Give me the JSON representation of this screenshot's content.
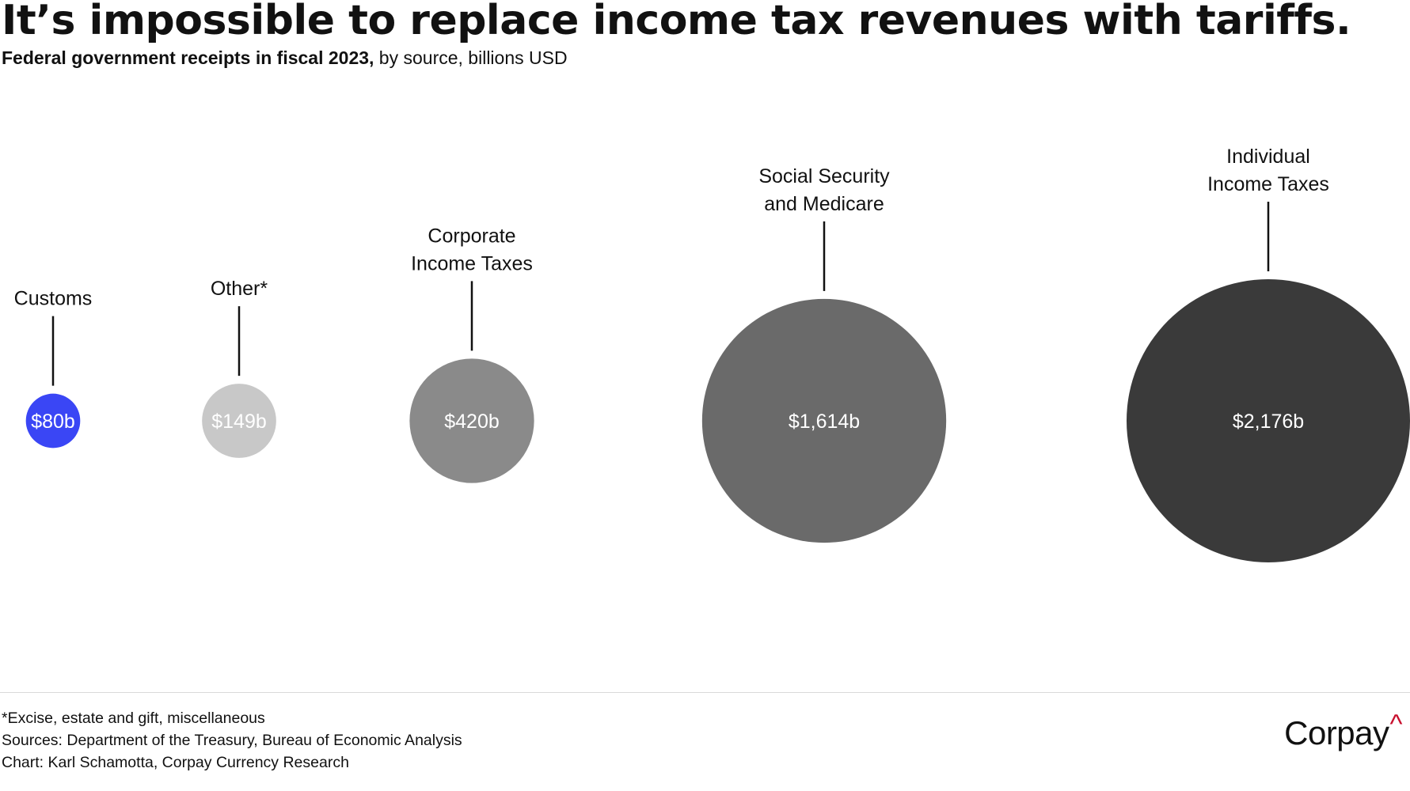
{
  "title": "It’s impossible to replace income tax revenues with tariffs.",
  "subtitle": {
    "strong": "Federal government receipts in fiscal 2023,",
    "rest": " by source, billions USD"
  },
  "chart_data": {
    "type": "bubble",
    "title": "It’s impossible to replace income tax revenues with tariffs.",
    "unit": "billions USD",
    "series": [
      {
        "name": "Customs",
        "label_lines": [
          "Customs"
        ],
        "value": 80,
        "value_label": "$80b",
        "color": "#3a46f5",
        "text_color": "#ffffff"
      },
      {
        "name": "Other*",
        "label_lines": [
          "Other*"
        ],
        "value": 149,
        "value_label": "$149b",
        "color": "#c8c8c8",
        "text_color": "#ffffff"
      },
      {
        "name": "Corporate Income Taxes",
        "label_lines": [
          "Corporate",
          "Income Taxes"
        ],
        "value": 420,
        "value_label": "$420b",
        "color": "#8a8a8a",
        "text_color": "#ffffff"
      },
      {
        "name": "Social Security and Medicare",
        "label_lines": [
          "Social Security",
          "and Medicare"
        ],
        "value": 1614,
        "value_label": "$1,614b",
        "color": "#6a6a6a",
        "text_color": "#ffffff"
      },
      {
        "name": "Individual Income Taxes",
        "label_lines": [
          "Individual",
          "Income Taxes"
        ],
        "value": 2176,
        "value_label": "$2,176b",
        "color": "#3a3a3a",
        "text_color": "#ffffff"
      }
    ]
  },
  "footnotes": {
    "note": "*Excise, estate and gift, miscellaneous",
    "sources": "Sources: Department of the Treasury, Bureau of Economic Analysis",
    "credit": "Chart: Karl Schamotta, Corpay Currency Research"
  },
  "logo": {
    "text": "Corpay",
    "mark": "^"
  }
}
